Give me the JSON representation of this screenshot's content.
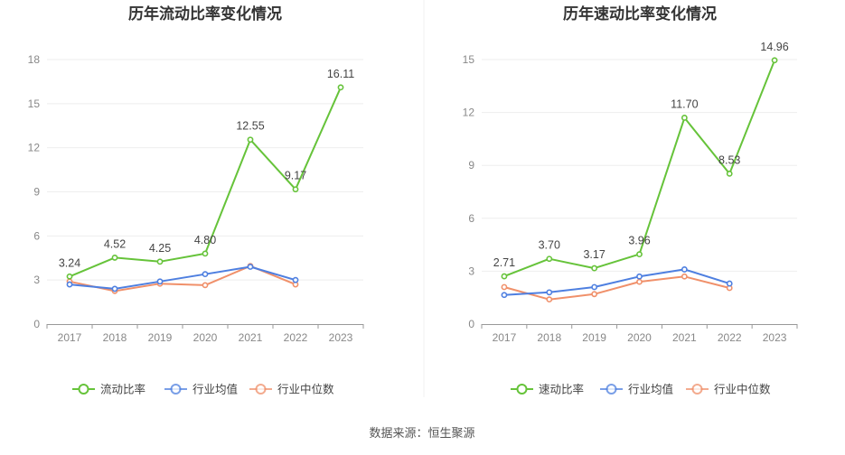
{
  "source": "数据来源：恒生聚源",
  "colors": {
    "primary": "#66c33a",
    "industry_avg": "#4e7fe0",
    "industry_median": "#f0906a",
    "grid": "#eeeeee",
    "axis": "#999999"
  },
  "chart_data": [
    {
      "type": "line",
      "title": "历年流动比率变化情况",
      "categories": [
        "2017",
        "2018",
        "2019",
        "2020",
        "2021",
        "2022",
        "2023"
      ],
      "ylim": [
        0,
        18
      ],
      "yticks": [
        0,
        3,
        6,
        9,
        12,
        15,
        18
      ],
      "grid": true,
      "legend_position": "bottom",
      "series": [
        {
          "name": "流动比率",
          "values": [
            3.24,
            4.52,
            4.25,
            4.8,
            12.55,
            9.17,
            16.11
          ],
          "labels": [
            "3.24",
            "4.52",
            "4.25",
            "4.80",
            "12.55",
            "9.17",
            "16.11"
          ],
          "color": "#66c33a",
          "show_labels": true
        },
        {
          "name": "行业均值",
          "values": [
            2.7,
            2.4,
            2.9,
            3.4,
            3.9,
            3.0,
            null
          ],
          "color": "#4e7fe0",
          "show_labels": false
        },
        {
          "name": "行业中位数",
          "values": [
            2.9,
            2.25,
            2.75,
            2.65,
            3.95,
            2.7,
            null
          ],
          "color": "#f0906a",
          "show_labels": false
        }
      ]
    },
    {
      "type": "line",
      "title": "历年速动比率变化情况",
      "categories": [
        "2017",
        "2018",
        "2019",
        "2020",
        "2021",
        "2022",
        "2023"
      ],
      "ylim": [
        0,
        15
      ],
      "yticks": [
        0,
        3,
        6,
        9,
        12,
        15
      ],
      "grid": true,
      "legend_position": "bottom",
      "series": [
        {
          "name": "速动比率",
          "values": [
            2.71,
            3.7,
            3.17,
            3.96,
            11.7,
            8.53,
            14.96
          ],
          "labels": [
            "2.71",
            "3.70",
            "3.17",
            "3.96",
            "11.70",
            "8.53",
            "14.96"
          ],
          "color": "#66c33a",
          "show_labels": true
        },
        {
          "name": "行业均值",
          "values": [
            1.65,
            1.8,
            2.1,
            2.7,
            3.1,
            2.3,
            null
          ],
          "color": "#4e7fe0",
          "show_labels": false
        },
        {
          "name": "行业中位数",
          "values": [
            2.1,
            1.4,
            1.7,
            2.4,
            2.7,
            2.05,
            null
          ],
          "color": "#f0906a",
          "show_labels": false
        }
      ]
    }
  ]
}
